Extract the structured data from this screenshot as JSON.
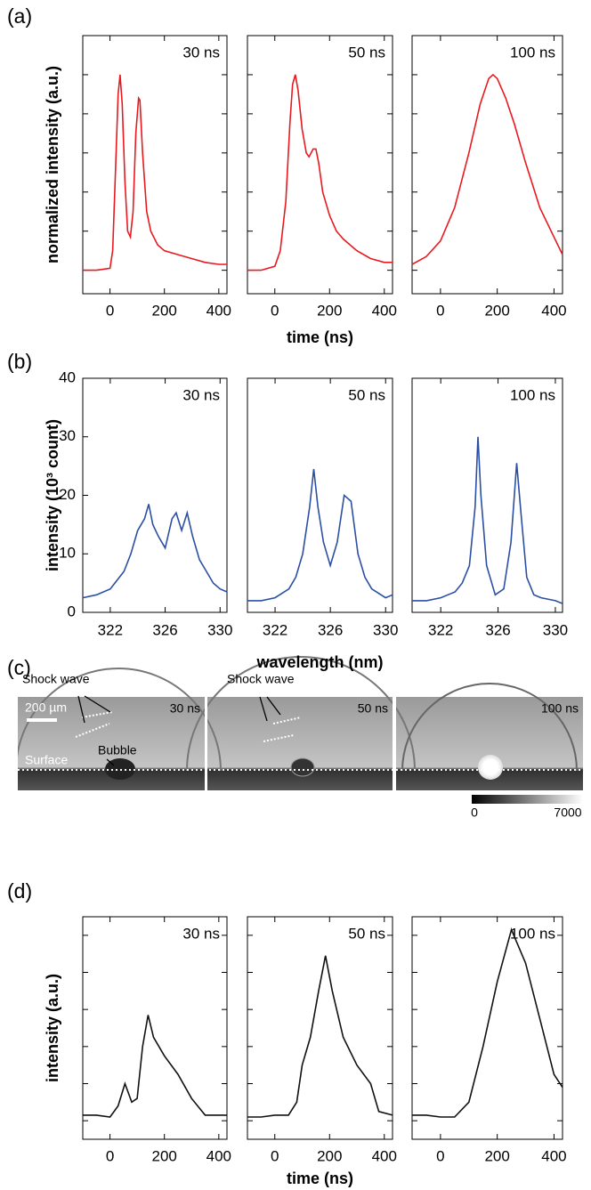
{
  "figure": {
    "panel_labels": [
      "(a)",
      "(b)",
      "(c)",
      "(d)"
    ],
    "panel_c": {
      "shock_labels": [
        "Shock wave",
        "Shock wave"
      ],
      "scale_bar": "200 µm",
      "times": [
        "30 ns",
        "50 ns",
        "100 ns"
      ],
      "bubble": "Bubble",
      "surface": "Surface",
      "colorbar_ticks": [
        0,
        7000
      ]
    }
  },
  "chart_data": [
    {
      "type": "line",
      "annotation": "30 ns",
      "ylabel": "normalized intensity (a.u.)",
      "color": "#e8191f",
      "x": [
        -100,
        -50,
        0,
        10,
        20,
        30,
        37,
        45,
        55,
        65,
        75,
        85,
        95,
        105,
        110,
        120,
        135,
        150,
        175,
        200,
        250,
        300,
        350,
        400,
        430
      ],
      "values": [
        0.0,
        0.0,
        0.01,
        0.1,
        0.5,
        0.9,
        1.0,
        0.85,
        0.45,
        0.2,
        0.17,
        0.3,
        0.7,
        0.88,
        0.87,
        0.6,
        0.3,
        0.2,
        0.13,
        0.1,
        0.08,
        0.06,
        0.04,
        0.03,
        0.03
      ],
      "xlim": [
        -100,
        430
      ],
      "xticks": [
        0,
        200,
        400
      ],
      "ylim": [
        -0.12,
        1.2
      ],
      "yticks_unlabeled": [
        0,
        0.2,
        0.4,
        0.6,
        0.8,
        1.0
      ]
    },
    {
      "type": "line",
      "annotation": "50 ns",
      "xlabel": "time (ns)",
      "color": "#e8191f",
      "x": [
        -100,
        -50,
        0,
        20,
        40,
        55,
        65,
        75,
        85,
        100,
        115,
        125,
        140,
        150,
        160,
        175,
        200,
        225,
        250,
        300,
        350,
        400,
        430
      ],
      "values": [
        0.0,
        0.0,
        0.02,
        0.1,
        0.35,
        0.75,
        0.95,
        1.0,
        0.92,
        0.72,
        0.6,
        0.58,
        0.62,
        0.62,
        0.55,
        0.4,
        0.28,
        0.2,
        0.16,
        0.1,
        0.06,
        0.04,
        0.04
      ],
      "xlim": [
        -100,
        430
      ],
      "xticks": [
        0,
        200,
        400
      ],
      "ylim": [
        -0.12,
        1.2
      ],
      "yticks_unlabeled": [
        0,
        0.2,
        0.4,
        0.6,
        0.8,
        1.0
      ]
    },
    {
      "type": "line",
      "annotation": "100 ns",
      "color": "#e8191f",
      "x": [
        -100,
        -50,
        0,
        50,
        100,
        140,
        170,
        185,
        200,
        230,
        260,
        300,
        350,
        400,
        430
      ],
      "values": [
        0.03,
        0.07,
        0.15,
        0.32,
        0.6,
        0.85,
        0.98,
        1.0,
        0.98,
        0.88,
        0.75,
        0.55,
        0.32,
        0.17,
        0.08
      ],
      "xlim": [
        -100,
        430
      ],
      "xticks": [
        0,
        200,
        400
      ],
      "ylim": [
        -0.12,
        1.2
      ],
      "yticks_unlabeled": [
        0,
        0.2,
        0.4,
        0.6,
        0.8,
        1.0
      ]
    },
    {
      "type": "line",
      "annotation": "30 ns",
      "ylabel": "intensity (10³ count)",
      "color": "#2b4fa3",
      "x": [
        320,
        321,
        322,
        323,
        323.5,
        324,
        324.5,
        324.8,
        325.1,
        325.5,
        326,
        326.5,
        326.8,
        327.2,
        327.6,
        328,
        328.5,
        329,
        329.5,
        330,
        330.5
      ],
      "values": [
        2.5,
        3,
        4,
        7,
        10,
        14,
        16,
        18.5,
        15,
        13,
        11,
        16,
        17,
        14,
        17,
        13,
        9,
        7,
        5,
        4,
        3.5
      ],
      "xlim": [
        320,
        330.5
      ],
      "xticks": [
        322,
        326,
        330
      ],
      "ylim": [
        0,
        40
      ],
      "yticks": [
        0,
        10,
        20,
        30,
        40
      ]
    },
    {
      "type": "line",
      "annotation": "50 ns",
      "xlabel": "wavelength (nm)",
      "color": "#2b4fa3",
      "x": [
        320,
        321,
        322,
        323,
        323.5,
        324,
        324.5,
        324.8,
        325.1,
        325.5,
        326,
        326.5,
        327,
        327.5,
        328,
        328.5,
        329,
        330,
        330.5
      ],
      "values": [
        2,
        2,
        2.5,
        4,
        6,
        10,
        18,
        24.5,
        18,
        12,
        8,
        12,
        20,
        19,
        10,
        6,
        4,
        2.5,
        3
      ],
      "xlim": [
        320,
        330.5
      ],
      "xticks": [
        322,
        326,
        330
      ],
      "ylim": [
        0,
        40
      ]
    },
    {
      "type": "line",
      "annotation": "100 ns",
      "color": "#2b4fa3",
      "x": [
        320,
        321,
        322,
        323,
        323.5,
        324,
        324.4,
        324.6,
        324.8,
        325.2,
        325.8,
        326.4,
        326.9,
        327.3,
        327.6,
        328,
        328.5,
        329,
        330,
        330.5
      ],
      "values": [
        2,
        2,
        2.5,
        3.5,
        5,
        8,
        18,
        30,
        20,
        8,
        3,
        4,
        12,
        25.5,
        17,
        6,
        3,
        2.5,
        2,
        1.5
      ],
      "xlim": [
        320,
        330.5
      ],
      "xticks": [
        322,
        326,
        330
      ],
      "ylim": [
        0,
        40
      ]
    },
    {
      "type": "line",
      "annotation": "30 ns",
      "ylabel": "intensity (a.u.)",
      "color": "#111111",
      "x": [
        -100,
        -50,
        0,
        30,
        55,
        80,
        100,
        120,
        140,
        160,
        200,
        250,
        300,
        350,
        430
      ],
      "values": [
        0.03,
        0.03,
        0.02,
        0.08,
        0.2,
        0.1,
        0.12,
        0.4,
        0.57,
        0.45,
        0.35,
        0.25,
        0.12,
        0.03,
        0.03
      ],
      "xlim": [
        -100,
        430
      ],
      "xticks": [
        0,
        200,
        400
      ],
      "ylim": [
        -0.1,
        1.1
      ],
      "yticks_unlabeled": [
        0,
        0.2,
        0.4,
        0.6,
        0.8,
        1.0
      ]
    },
    {
      "type": "line",
      "annotation": "50 ns",
      "xlabel": "time (ns)",
      "color": "#111111",
      "x": [
        -100,
        -50,
        0,
        50,
        80,
        100,
        130,
        160,
        185,
        210,
        250,
        300,
        350,
        380,
        430
      ],
      "values": [
        0.02,
        0.02,
        0.03,
        0.03,
        0.1,
        0.3,
        0.45,
        0.7,
        0.89,
        0.7,
        0.45,
        0.3,
        0.2,
        0.05,
        0.03
      ],
      "xlim": [
        -100,
        430
      ],
      "xticks": [
        0,
        200,
        400
      ],
      "ylim": [
        -0.1,
        1.1
      ],
      "yticks_unlabeled": [
        0,
        0.2,
        0.4,
        0.6,
        0.8,
        1.0
      ]
    },
    {
      "type": "line",
      "annotation": "100 ns",
      "color": "#111111",
      "x": [
        -100,
        -50,
        0,
        50,
        100,
        150,
        200,
        250,
        300,
        350,
        400,
        430
      ],
      "values": [
        0.03,
        0.03,
        0.02,
        0.02,
        0.1,
        0.4,
        0.75,
        1.03,
        0.85,
        0.55,
        0.25,
        0.18
      ],
      "xlim": [
        -100,
        430
      ],
      "xticks": [
        0,
        200,
        400
      ],
      "ylim": [
        -0.1,
        1.1
      ],
      "yticks_unlabeled": [
        0,
        0.2,
        0.4,
        0.6,
        0.8,
        1.0
      ]
    }
  ]
}
